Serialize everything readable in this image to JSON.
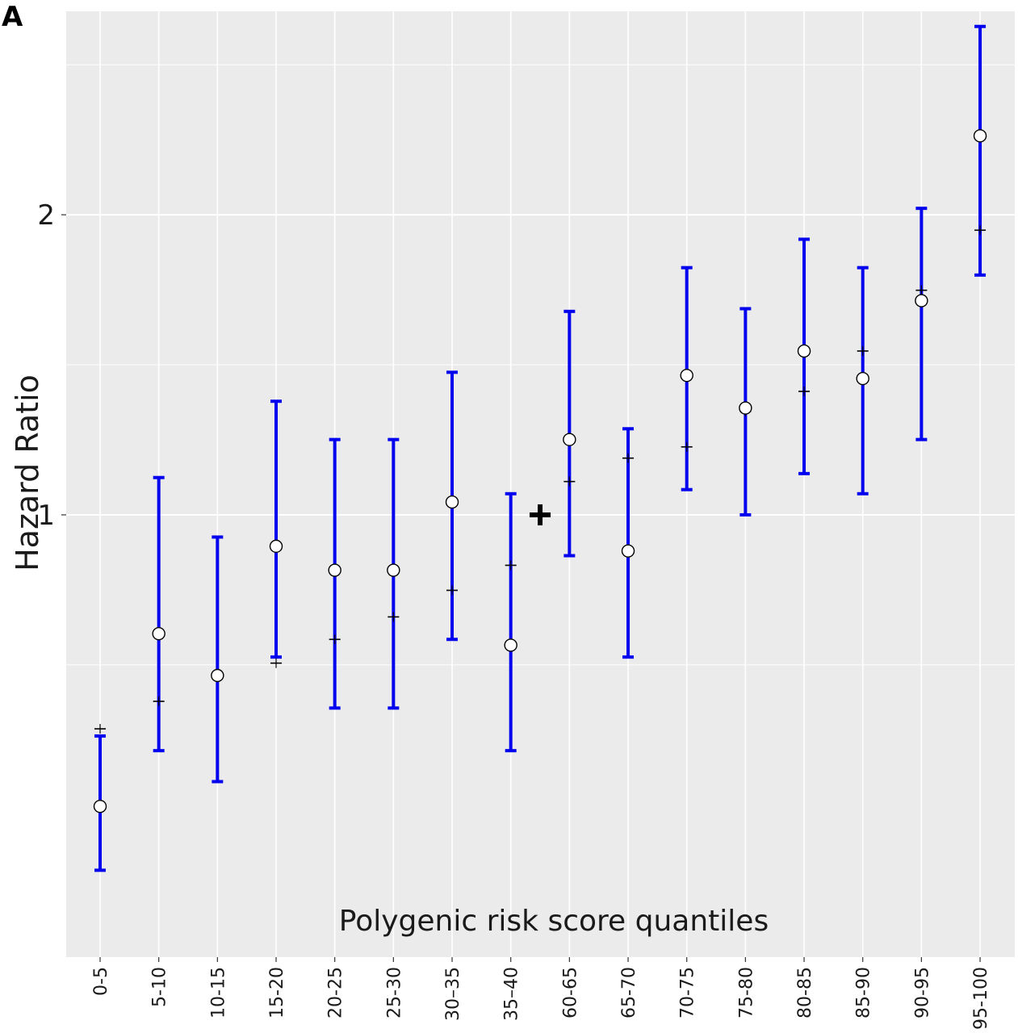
{
  "panel_label": "A",
  "colors": {
    "panel_bg": "#ebebeb",
    "grid": "#ffffff",
    "error_bar": "#0000ee",
    "point_fill": "#ffffff",
    "point_stroke": "#000000",
    "marker": "#000000"
  },
  "reference_marker": {
    "symbol": "+",
    "value": 1.0,
    "position": "between 35–40 and 60-65"
  },
  "chart_data": {
    "type": "scatter",
    "subtype": "point estimates with 95% confidence interval error bars, log-scaled y axis",
    "title": "",
    "xlabel": "Polygenic risk score quantiles",
    "ylabel": "Hazard Ratio",
    "y_scale": "log",
    "ylim": [
      0.36,
      3.2
    ],
    "y_ticks": [
      1,
      2
    ],
    "y_tick_labels": [
      "1",
      "2"
    ],
    "grid": true,
    "categories": [
      "0-5",
      "5-10",
      "10-15",
      "15-20",
      "20-25",
      "25-30",
      "30–35",
      "35–40",
      "60-65",
      "65-70",
      "70-75",
      "75-80",
      "80-85",
      "85-90",
      "90-95",
      "95-100"
    ],
    "series": [
      {
        "role": "hazard ratio point estimate (open circles)",
        "values": [
          0.51,
          0.76,
          0.69,
          0.93,
          0.88,
          0.88,
          1.03,
          0.74,
          1.19,
          0.92,
          1.38,
          1.28,
          1.46,
          1.37,
          1.64,
          2.4
        ]
      },
      {
        "role": "95% CI lower bound",
        "values": [
          0.44,
          0.58,
          0.54,
          0.72,
          0.64,
          0.64,
          0.75,
          0.58,
          0.91,
          0.72,
          1.06,
          1.0,
          1.1,
          1.05,
          1.19,
          1.74
        ]
      },
      {
        "role": "95% CI upper bound",
        "values": [
          0.6,
          1.09,
          0.95,
          1.3,
          1.19,
          1.19,
          1.39,
          1.05,
          1.6,
          1.22,
          1.77,
          1.61,
          1.89,
          1.77,
          2.03,
          3.09
        ]
      },
      {
        "role": "secondary estimate (small dash-plus marks)",
        "values": [
          0.61,
          0.65,
          0.69,
          0.71,
          0.75,
          0.79,
          0.84,
          0.89,
          1.08,
          1.14,
          1.17,
          1.27,
          1.33,
          1.46,
          1.68,
          1.93
        ]
      }
    ]
  }
}
